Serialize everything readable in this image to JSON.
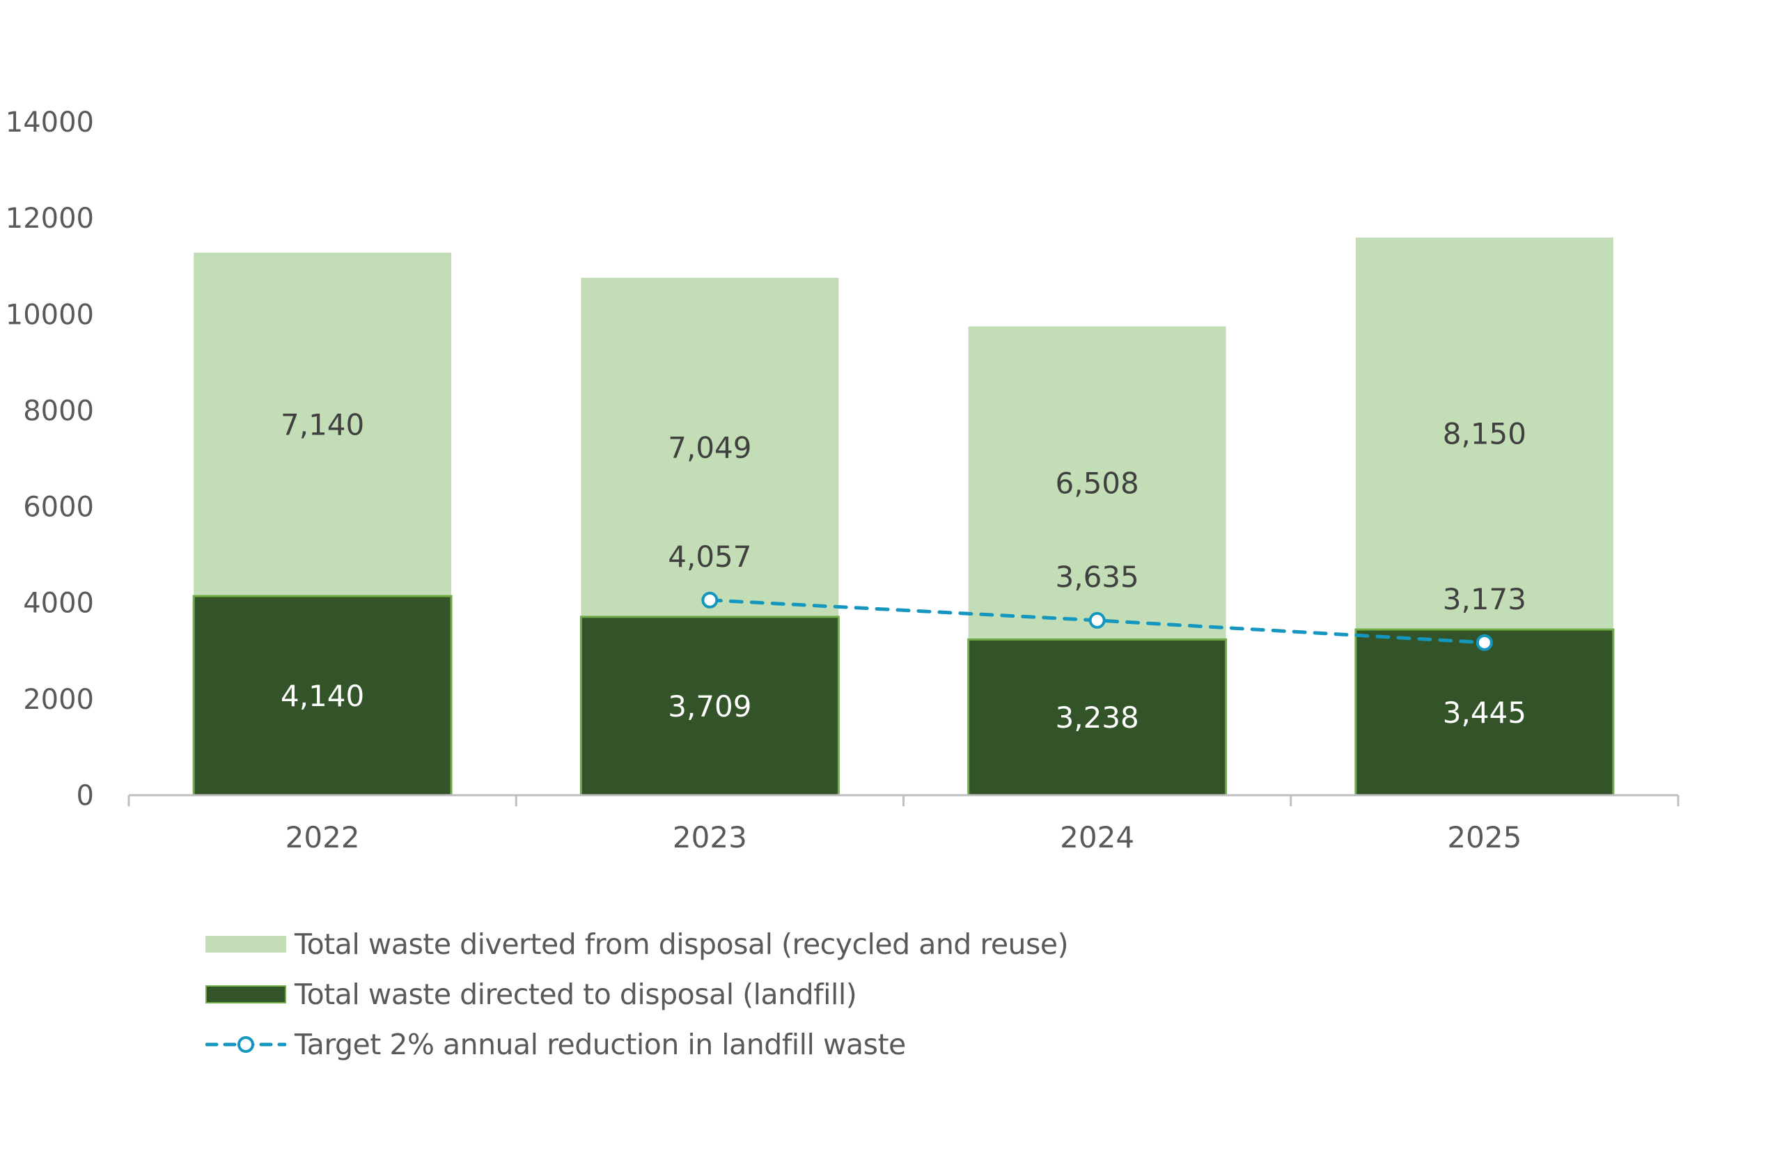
{
  "chart_data": {
    "type": "bar",
    "stacked": true,
    "title": "",
    "xlabel": "",
    "ylabel": "",
    "categories": [
      "2022",
      "2023",
      "2024",
      "2025"
    ],
    "ylim": [
      0,
      14000
    ],
    "yticks": [
      0,
      2000,
      4000,
      6000,
      8000,
      10000,
      12000,
      14000
    ],
    "ytick_labels": [
      "0",
      "2000",
      "4000",
      "6000",
      "8000",
      "10000",
      "12000",
      "14000"
    ],
    "grid": false,
    "legend_position": "bottom-left",
    "series": [
      {
        "name": "Total waste directed to disposal (landfill)",
        "type": "bar",
        "color": "#325428",
        "border_color": "#6fac46",
        "values": [
          4140,
          3709,
          3238,
          3445
        ],
        "labels": [
          "4,140",
          "3,709",
          "3,238",
          "3,445"
        ]
      },
      {
        "name": "Total waste diverted from disposal (recycled and reuse)",
        "type": "bar",
        "color": "#c3deb6",
        "values": [
          7140,
          7049,
          6508,
          8150
        ],
        "labels": [
          "7,140",
          "7,049",
          "6,508",
          "8,150"
        ]
      },
      {
        "name": "Target 2% annual reduction in landfill waste",
        "type": "line",
        "style": "dashed",
        "marker": "circle",
        "color": "#1496bf",
        "values": [
          null,
          4057,
          3635,
          3173
        ],
        "labels": [
          "",
          "4,057",
          "3,635",
          "3,173"
        ]
      }
    ]
  },
  "legend": [
    {
      "label": "Total waste diverted from disposal (recycled and reuse)",
      "swatch": "light-bar"
    },
    {
      "label": "Total waste directed to disposal (landfill)",
      "swatch": "dark-bar"
    },
    {
      "label": "Target 2% annual reduction in landfill waste",
      "swatch": "dashed-line-marker"
    }
  ]
}
